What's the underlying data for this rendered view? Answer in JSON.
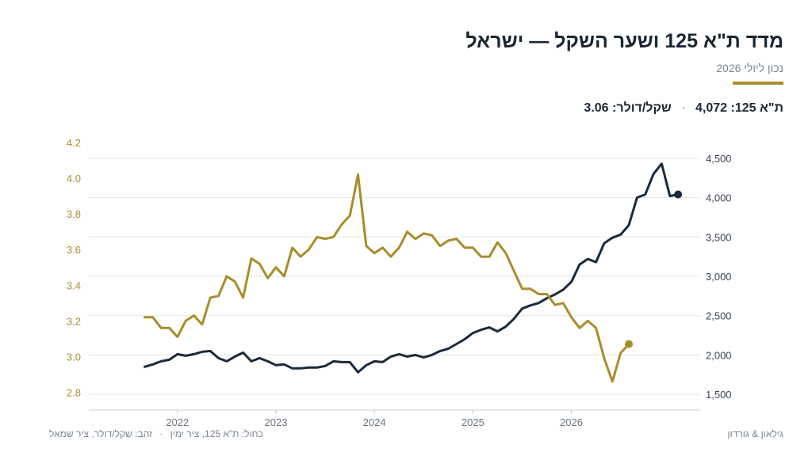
{
  "header": {
    "title": "מדד ת\"א 125 ושער השקל — ישראל",
    "subtitle": "נכון ליולי 2026",
    "ta125_label": "ת\"א 125:",
    "ta125_value": "4,072",
    "separator": "·",
    "fx_label": "שקל/דולר:",
    "fx_value": "3.06"
  },
  "footer": {
    "legend_blue": "כחול: ת\"א 125, ציר ימין",
    "legend_sep": "·",
    "legend_gold": "זהב: שקל/דולר, ציר שמאל",
    "source": "גילאון & גורדון"
  },
  "colors": {
    "navy": "#1c2a3a",
    "gold": "#a88e2a",
    "grid": "#e3e6ea"
  },
  "chart_data": {
    "type": "line",
    "x_start": 2021.667,
    "x_step_months": 1,
    "xlim": [
      2021.1,
      2027.3
    ],
    "x_ticks": [
      2022,
      2023,
      2024,
      2025,
      2026
    ],
    "x_tick_labels": [
      "2022",
      "2023",
      "2024",
      "2025",
      "2026"
    ],
    "left_axis": {
      "ylim": [
        2.7,
        4.2
      ],
      "ticks": [
        2.8,
        3.0,
        3.2,
        3.4,
        3.6,
        3.8,
        4.0,
        4.2
      ],
      "tick_labels": [
        "2.8",
        "3.0",
        "3.2",
        "3.4",
        "3.6",
        "3.8",
        "4.0",
        "4.2"
      ]
    },
    "right_axis": {
      "ylim": [
        1300,
        4700
      ],
      "ticks": [
        1500,
        2000,
        2500,
        3000,
        3500,
        4000,
        4500
      ],
      "tick_labels": [
        "1,500",
        "2,000",
        "2,500",
        "3,000",
        "3,500",
        "4,000",
        "4,500"
      ]
    },
    "legend": "bottom-left",
    "grid": true,
    "series": [
      {
        "axis": "right",
        "color": "#1c2a3a",
        "values": [
          1850,
          1880,
          1920,
          1940,
          2010,
          1990,
          2010,
          2040,
          2050,
          1960,
          1920,
          1980,
          2030,
          1920,
          1960,
          1920,
          1870,
          1880,
          1830,
          1830,
          1840,
          1840,
          1860,
          1920,
          1910,
          1910,
          1780,
          1870,
          1920,
          1910,
          1980,
          2010,
          1980,
          2000,
          1970,
          2000,
          2050,
          2080,
          2140,
          2200,
          2280,
          2320,
          2350,
          2300,
          2360,
          2460,
          2590,
          2630,
          2660,
          2720,
          2770,
          2830,
          2930,
          3150,
          3220,
          3180,
          3420,
          3490,
          3530,
          3650,
          4000,
          4040,
          4300,
          4430,
          4020,
          4040
        ],
        "end_marker": true
      },
      {
        "axis": "left",
        "color": "#a88e2a",
        "values": [
          3.22,
          3.22,
          3.16,
          3.16,
          3.11,
          3.2,
          3.23,
          3.18,
          3.33,
          3.34,
          3.45,
          3.42,
          3.33,
          3.55,
          3.52,
          3.44,
          3.5,
          3.45,
          3.61,
          3.56,
          3.6,
          3.67,
          3.66,
          3.67,
          3.74,
          3.79,
          4.02,
          3.62,
          3.58,
          3.61,
          3.56,
          3.61,
          3.7,
          3.66,
          3.69,
          3.68,
          3.62,
          3.65,
          3.66,
          3.61,
          3.61,
          3.56,
          3.56,
          3.64,
          3.58,
          3.48,
          3.38,
          3.38,
          3.35,
          3.35,
          3.29,
          3.3,
          3.22,
          3.16,
          3.2,
          3.16,
          2.99,
          2.86,
          3.02,
          3.07
        ],
        "x_start": 2021.667,
        "end_marker": true
      }
    ]
  }
}
